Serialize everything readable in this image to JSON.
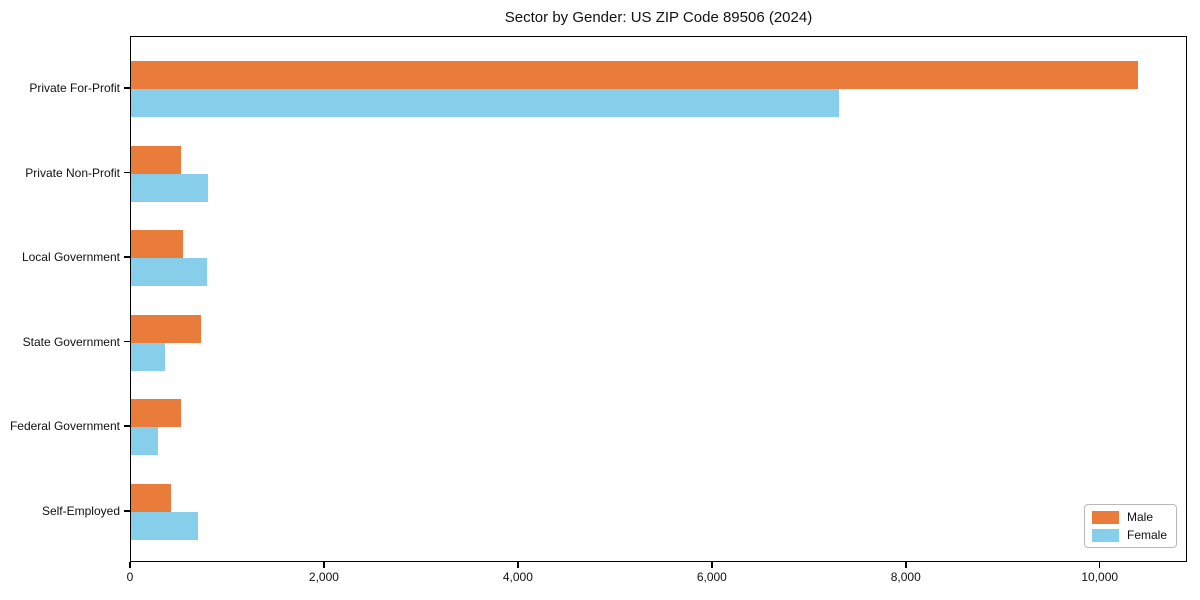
{
  "chart_data": {
    "type": "bar",
    "orientation": "horizontal",
    "title": "Sector by Gender: US ZIP Code 89506 (2024)",
    "categories": [
      "Private For-Profit",
      "Private Non-Profit",
      "Local Government",
      "State Government",
      "Federal Government",
      "Self-Employed"
    ],
    "series": [
      {
        "name": "Male",
        "color": "#e97c3b",
        "values": [
          10380,
          520,
          540,
          720,
          520,
          410
        ]
      },
      {
        "name": "Female",
        "color": "#87ceeb",
        "values": [
          7300,
          790,
          780,
          350,
          280,
          690
        ]
      }
    ],
    "xlabel": "",
    "ylabel": "",
    "xticks": [
      0,
      2000,
      4000,
      6000,
      8000,
      10000
    ],
    "xtick_labels": [
      "0",
      "2,000",
      "4,000",
      "6,000",
      "8,000",
      "10,000"
    ],
    "xlim": [
      0,
      10900
    ],
    "grid": false,
    "legend_position": "lower right",
    "bar_group_order": "male above, female below"
  }
}
